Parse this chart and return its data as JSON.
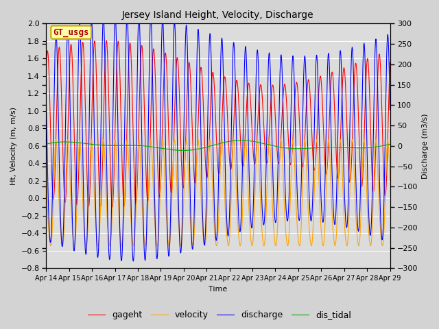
{
  "title": "Jersey Island Height, Velocity, Discharge",
  "xlabel": "Time",
  "ylabel_left": "Ht, Velocity (m, m/s)",
  "ylabel_right": "Discharge (m3/s)",
  "ylim_left": [
    -0.8,
    2.0
  ],
  "ylim_right": [
    -300,
    300
  ],
  "n_points": 5000,
  "tidal_period": 0.517,
  "colors": {
    "gageht": "#ff0000",
    "velocity": "#ffa500",
    "discharge": "#0000ff",
    "dis_tidal": "#00aa00"
  },
  "background_color": "#d3d3d3",
  "plot_bg_color": "#dcdcdc",
  "legend_box_facecolor": "#ffffaa",
  "legend_box_edgecolor": "#ccaa00",
  "legend_text_color": "#aa0000",
  "legend_box_label": "GT_usgs",
  "x_tick_labels": [
    "Apr 14",
    "Apr 15",
    "Apr 16",
    "Apr 17",
    "Apr 18",
    "Apr 19",
    "Apr 20",
    "Apr 21",
    "Apr 22",
    "Apr 23",
    "Apr 24",
    "Apr 25",
    "Apr 26",
    "Apr 27",
    "Apr 28",
    "Apr 29"
  ],
  "yticks_left": [
    -0.8,
    -0.6,
    -0.4,
    -0.2,
    0.0,
    0.2,
    0.4,
    0.6,
    0.8,
    1.0,
    1.2,
    1.4,
    1.6,
    1.8,
    2.0
  ],
  "yticks_right": [
    -300,
    -250,
    -200,
    -150,
    -100,
    -50,
    0,
    50,
    100,
    150,
    200,
    250,
    300
  ],
  "line_width": 0.8,
  "legend_labels": [
    "gageht",
    "velocity",
    "discharge",
    "dis_tidal"
  ]
}
